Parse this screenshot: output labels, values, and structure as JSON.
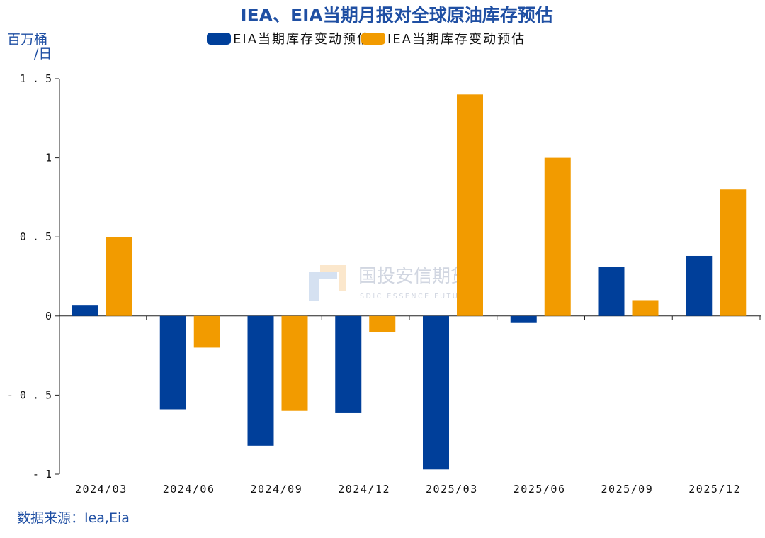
{
  "chart_data": {
    "type": "bar",
    "title": "IEA、EIA当期月报对全球原油库存预估",
    "ylabel": "百万桶/日",
    "ylabel_lines": [
      "百万桶",
      "/日"
    ],
    "ylim": [
      -1,
      1.5
    ],
    "yticks": [
      -1,
      -0.5,
      0,
      0.5,
      1,
      1.5
    ],
    "ytick_labels": [
      "-1",
      "-0.5",
      "0",
      "0.5",
      "1",
      "1.5"
    ],
    "categories": [
      "2024/03",
      "2024/06",
      "2024/09",
      "2024/12",
      "2025/03",
      "2025/06",
      "2025/09",
      "2025/12"
    ],
    "series": [
      {
        "name": "EIA当期库存变动预估",
        "color": "#003f9a",
        "values": [
          0.07,
          -0.59,
          -0.82,
          -0.61,
          -0.97,
          -0.04,
          0.31,
          0.38
        ]
      },
      {
        "name": "IEA当期库存变动预估",
        "color": "#f29b00",
        "values": [
          0.5,
          -0.2,
          -0.6,
          -0.1,
          1.4,
          1.0,
          0.1,
          0.8
        ]
      }
    ],
    "legend": "top",
    "grid": false
  },
  "source": "数据来源：Iea,Eia",
  "watermark": {
    "cn": "国投安信期货",
    "en": "SDIC ESSENCE FUTURES"
  }
}
